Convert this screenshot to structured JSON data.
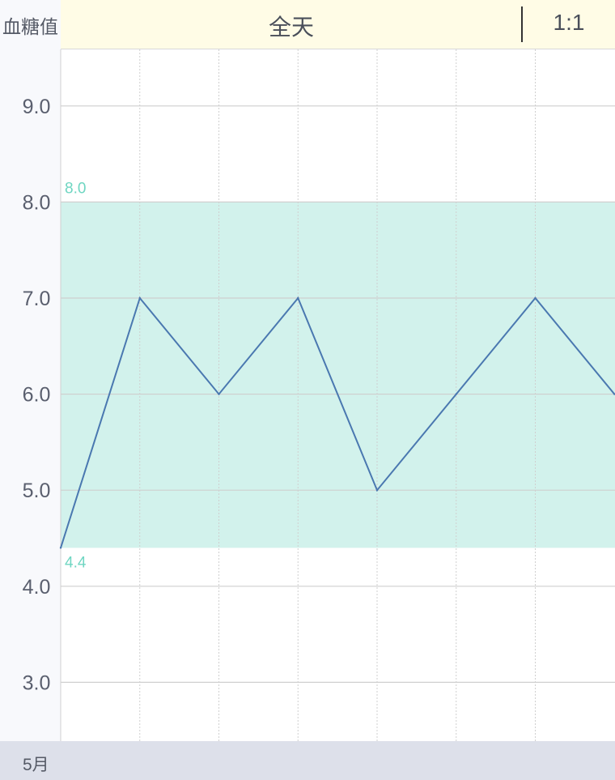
{
  "header": {
    "y_title": "血糖值",
    "title": "全天",
    "ratio_label": "1:1"
  },
  "footer": {
    "month_label": "5月"
  },
  "colors": {
    "line": "#4a78b0",
    "target_band": "#d2f2ec",
    "target_text": "#6fd6c2",
    "axis_text": "#5a5f6e"
  },
  "chart_data": {
    "type": "line",
    "title": "全天",
    "ylabel": "血糖值",
    "xlabel": "5月",
    "x_ticks": [
      "0",
      "5",
      "10",
      "15",
      "20",
      "25",
      "30"
    ],
    "y_ticks": [
      "3.0",
      "4.0",
      "5.0",
      "6.0",
      "7.0",
      "8.0",
      "9.0"
    ],
    "xlim": [
      0,
      35
    ],
    "ylim": [
      2.4,
      9.6
    ],
    "target_range": {
      "low": 4.4,
      "high": 8.0,
      "low_label": "4.4",
      "high_label": "8.0"
    },
    "series": [
      {
        "x": [
          0,
          5,
          10,
          15,
          20,
          25,
          30,
          35
        ],
        "y": [
          4.4,
          7.0,
          6.0,
          7.0,
          5.0,
          6.0,
          7.0,
          6.0
        ]
      }
    ]
  }
}
